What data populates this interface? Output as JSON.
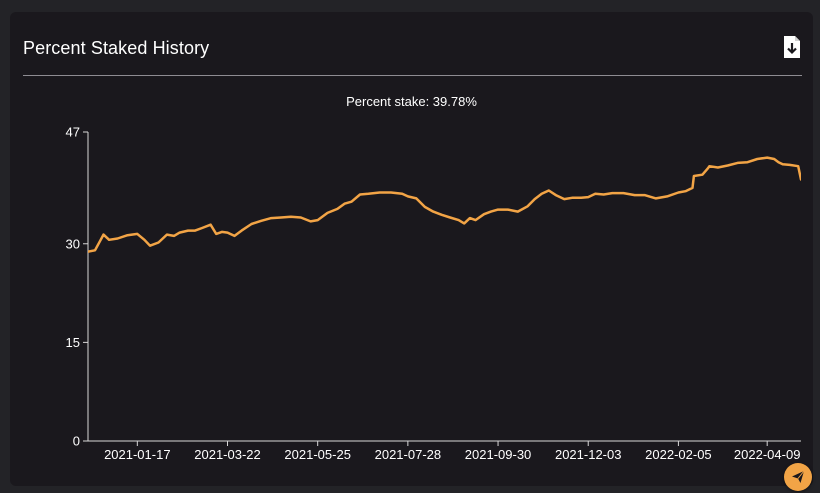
{
  "panel": {
    "title": "Percent Staked History",
    "subtitle": "Percent stake: 39.78%",
    "export_icon": "download-file-icon",
    "fab_icon": "send-icon"
  },
  "colors": {
    "line": "#f2a446",
    "background": "#1a181d",
    "axis": "#d8d8d8",
    "text": "#ffffff"
  },
  "chart_data": {
    "type": "line",
    "title": "",
    "subtitle": "Percent stake: 39.78%",
    "xlabel": "",
    "ylabel": "",
    "ylim": [
      0,
      47
    ],
    "yticks": [
      0,
      15,
      30,
      47
    ],
    "xlim": [
      "2020-12-13",
      "2022-05-03"
    ],
    "xticks": [
      "2021-01-17",
      "2021-03-22",
      "2021-05-25",
      "2021-07-28",
      "2021-09-30",
      "2021-12-03",
      "2022-02-05",
      "2022-04-09"
    ],
    "grid": false,
    "legend": "none",
    "series": [
      {
        "name": "",
        "x": [
          "2020-12-13",
          "2020-12-18",
          "2020-12-22",
          "2020-12-24",
          "2020-12-28",
          "2021-01-03",
          "2021-01-10",
          "2021-01-17",
          "2021-01-22",
          "2021-01-26",
          "2021-02-01",
          "2021-02-07",
          "2021-02-12",
          "2021-02-16",
          "2021-02-22",
          "2021-02-27",
          "2021-03-04",
          "2021-03-10",
          "2021-03-14",
          "2021-03-18",
          "2021-03-22",
          "2021-03-27",
          "2021-04-01",
          "2021-04-08",
          "2021-04-15",
          "2021-04-22",
          "2021-04-29",
          "2021-05-06",
          "2021-05-13",
          "2021-05-20",
          "2021-05-25",
          "2021-06-01",
          "2021-06-08",
          "2021-06-13",
          "2021-06-18",
          "2021-06-24",
          "2021-06-30",
          "2021-07-08",
          "2021-07-16",
          "2021-07-24",
          "2021-07-28",
          "2021-08-03",
          "2021-08-09",
          "2021-08-15",
          "2021-08-21",
          "2021-08-27",
          "2021-09-02",
          "2021-09-06",
          "2021-09-10",
          "2021-09-14",
          "2021-09-20",
          "2021-09-25",
          "2021-09-30",
          "2021-10-07",
          "2021-10-14",
          "2021-10-21",
          "2021-10-26",
          "2021-10-31",
          "2021-11-05",
          "2021-11-10",
          "2021-11-16",
          "2021-11-22",
          "2021-11-28",
          "2021-12-03",
          "2021-12-08",
          "2021-12-14",
          "2021-12-20",
          "2021-12-28",
          "2022-01-05",
          "2022-01-12",
          "2022-01-20",
          "2022-01-28",
          "2022-02-05",
          "2022-02-10",
          "2022-02-15",
          "2022-02-16",
          "2022-02-22",
          "2022-02-26",
          "2022-02-27",
          "2022-03-05",
          "2022-03-12",
          "2022-03-19",
          "2022-03-26",
          "2022-04-02",
          "2022-04-09",
          "2022-04-14",
          "2022-04-17",
          "2022-04-20",
          "2022-04-25",
          "2022-05-01",
          "2022-05-03"
        ],
        "values": [
          28.8,
          29.0,
          30.6,
          31.4,
          30.6,
          30.8,
          31.3,
          31.5,
          30.6,
          29.7,
          30.2,
          31.4,
          31.2,
          31.7,
          32.0,
          32.0,
          32.4,
          32.9,
          31.5,
          31.8,
          31.7,
          31.2,
          32.0,
          33.0,
          33.5,
          33.9,
          34.0,
          34.1,
          34.0,
          33.4,
          33.6,
          34.7,
          35.3,
          36.1,
          36.4,
          37.5,
          37.6,
          37.8,
          37.8,
          37.6,
          37.2,
          36.9,
          35.6,
          34.9,
          34.4,
          34.0,
          33.6,
          33.1,
          33.9,
          33.6,
          34.5,
          34.9,
          35.2,
          35.2,
          34.9,
          35.7,
          36.8,
          37.6,
          38.1,
          37.4,
          36.8,
          37.0,
          37.0,
          37.1,
          37.6,
          37.5,
          37.7,
          37.7,
          37.4,
          37.4,
          36.9,
          37.2,
          37.8,
          38.0,
          38.5,
          40.3,
          40.5,
          41.5,
          41.8,
          41.6,
          41.9,
          42.3,
          42.4,
          42.9,
          43.1,
          42.9,
          42.4,
          42.1,
          42.0,
          41.8,
          39.78
        ]
      }
    ]
  }
}
